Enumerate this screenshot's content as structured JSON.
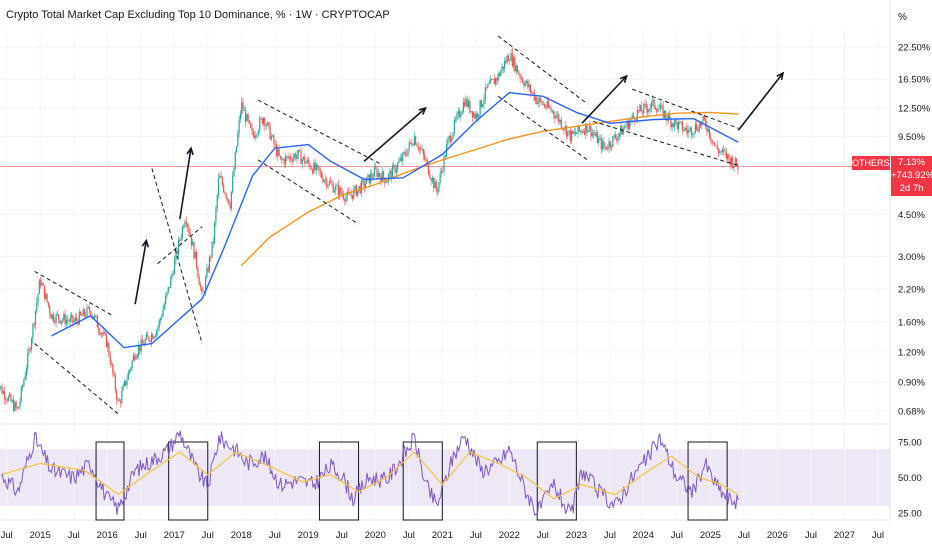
{
  "title": "Crypto Total Market Cap Excluding Top 10 Dominance, % · 1W · CRYPTOCAP",
  "axis_unit_label": "%",
  "price_axis_ticks": [
    "22.50%",
    "16.50%",
    "12.50%",
    "9.50%",
    "7.13%",
    "4.50%",
    "3.00%",
    "2.20%",
    "1.60%",
    "1.20%",
    "0.90%",
    "0.68%"
  ],
  "rsi_axis_ticks": [
    "75.00",
    "50.00",
    "25.00"
  ],
  "time_axis_labels": [
    "Jul",
    "2015",
    "Jul",
    "2016",
    "Jul",
    "2017",
    "Jul",
    "2018",
    "Jul",
    "2019",
    "Jul",
    "2020",
    "Jul",
    "2021",
    "Jul",
    "2022",
    "Jul",
    "2023",
    "Jul",
    "2024",
    "Jul",
    "2025",
    "Jul",
    "2026",
    "Jul",
    "2027",
    "Jul"
  ],
  "last_price_badge": {
    "symbol": "OTHERS.D",
    "price": "7.13%",
    "change": "+743.92%",
    "countdown": "2d 7h"
  },
  "colors": {
    "price_line": "#f23645",
    "ma_short": "#2962ff",
    "ma_long": "#f7931a",
    "rsi_line": "#7e57c2",
    "rsi_ma": "#f7c23b",
    "rsi_band": "#ede7f6",
    "candle_up": "#26a69a",
    "candle_down": "#ef5350"
  },
  "chart_data": {
    "type": "candlestick",
    "timeframe": "1W",
    "y_scale": "log",
    "ylim_percent": [
      0.6,
      27
    ],
    "x_range": [
      "2014-05",
      "2027-08"
    ],
    "close_series": [
      {
        "date": "2014-05",
        "value": 0.9
      },
      {
        "date": "2014-09",
        "value": 0.68
      },
      {
        "date": "2014-11",
        "value": 1.2
      },
      {
        "date": "2015-01",
        "value": 2.4
      },
      {
        "date": "2015-03",
        "value": 1.7
      },
      {
        "date": "2015-07",
        "value": 1.6
      },
      {
        "date": "2015-10",
        "value": 1.8
      },
      {
        "date": "2016-01",
        "value": 1.3
      },
      {
        "date": "2016-03",
        "value": 0.72
      },
      {
        "date": "2016-06",
        "value": 1.2
      },
      {
        "date": "2016-10",
        "value": 1.5
      },
      {
        "date": "2016-12",
        "value": 2.2
      },
      {
        "date": "2017-03",
        "value": 4.5
      },
      {
        "date": "2017-05",
        "value": 2.8
      },
      {
        "date": "2017-06",
        "value": 2.0
      },
      {
        "date": "2017-08",
        "value": 3.5
      },
      {
        "date": "2017-09",
        "value": 6.5
      },
      {
        "date": "2017-11",
        "value": 5.0
      },
      {
        "date": "2018-01",
        "value": 13.0
      },
      {
        "date": "2018-03",
        "value": 9.5
      },
      {
        "date": "2018-05",
        "value": 11.5
      },
      {
        "date": "2018-08",
        "value": 7.5
      },
      {
        "date": "2018-11",
        "value": 8.0
      },
      {
        "date": "2019-02",
        "value": 7.0
      },
      {
        "date": "2019-05",
        "value": 6.0
      },
      {
        "date": "2019-08",
        "value": 5.3
      },
      {
        "date": "2019-11",
        "value": 6.0
      },
      {
        "date": "2020-01",
        "value": 6.8
      },
      {
        "date": "2020-03",
        "value": 6.3
      },
      {
        "date": "2020-06",
        "value": 7.8
      },
      {
        "date": "2020-08",
        "value": 9.5
      },
      {
        "date": "2020-10",
        "value": 7.5
      },
      {
        "date": "2020-12",
        "value": 5.6
      },
      {
        "date": "2021-02",
        "value": 9.0
      },
      {
        "date": "2021-05",
        "value": 13.5
      },
      {
        "date": "2021-07",
        "value": 11.5
      },
      {
        "date": "2021-09",
        "value": 15.0
      },
      {
        "date": "2021-11",
        "value": 17.0
      },
      {
        "date": "2022-01",
        "value": 21.0
      },
      {
        "date": "2022-03",
        "value": 17.0
      },
      {
        "date": "2022-06",
        "value": 13.5
      },
      {
        "date": "2022-09",
        "value": 12.0
      },
      {
        "date": "2022-12",
        "value": 9.5
      },
      {
        "date": "2023-03",
        "value": 10.5
      },
      {
        "date": "2023-06",
        "value": 8.5
      },
      {
        "date": "2023-09",
        "value": 10.0
      },
      {
        "date": "2023-12",
        "value": 12.0
      },
      {
        "date": "2024-03",
        "value": 13.0
      },
      {
        "date": "2024-06",
        "value": 11.0
      },
      {
        "date": "2024-09",
        "value": 10.0
      },
      {
        "date": "2024-12",
        "value": 11.0
      },
      {
        "date": "2025-02",
        "value": 8.5
      },
      {
        "date": "2025-04",
        "value": 7.8
      },
      {
        "date": "2025-06",
        "value": 7.13
      }
    ],
    "ma_short": [
      {
        "date": "2015-03",
        "value": 1.4
      },
      {
        "date": "2015-10",
        "value": 1.7
      },
      {
        "date": "2016-04",
        "value": 1.25
      },
      {
        "date": "2016-09",
        "value": 1.3
      },
      {
        "date": "2017-06",
        "value": 2.0
      },
      {
        "date": "2017-10",
        "value": 3.3
      },
      {
        "date": "2018-03",
        "value": 6.5
      },
      {
        "date": "2018-07",
        "value": 8.5
      },
      {
        "date": "2019-01",
        "value": 8.8
      },
      {
        "date": "2019-05",
        "value": 7.5
      },
      {
        "date": "2019-11",
        "value": 6.3
      },
      {
        "date": "2020-06",
        "value": 6.4
      },
      {
        "date": "2021-01",
        "value": 8.0
      },
      {
        "date": "2021-07",
        "value": 11.0
      },
      {
        "date": "2022-01",
        "value": 14.5
      },
      {
        "date": "2022-07",
        "value": 14.0
      },
      {
        "date": "2023-01",
        "value": 12.0
      },
      {
        "date": "2023-07",
        "value": 10.8
      },
      {
        "date": "2024-03",
        "value": 11.2
      },
      {
        "date": "2024-10",
        "value": 11.3
      },
      {
        "date": "2025-06",
        "value": 9.0
      }
    ],
    "ma_long": [
      {
        "date": "2018-01",
        "value": 2.75
      },
      {
        "date": "2018-06",
        "value": 3.6
      },
      {
        "date": "2019-01",
        "value": 4.6
      },
      {
        "date": "2019-07",
        "value": 5.4
      },
      {
        "date": "2020-01",
        "value": 6.0
      },
      {
        "date": "2020-07",
        "value": 6.8
      },
      {
        "date": "2021-01",
        "value": 7.6
      },
      {
        "date": "2021-07",
        "value": 8.4
      },
      {
        "date": "2022-01",
        "value": 9.3
      },
      {
        "date": "2022-07",
        "value": 10.0
      },
      {
        "date": "2023-01",
        "value": 10.5
      },
      {
        "date": "2023-07",
        "value": 11.0
      },
      {
        "date": "2024-01",
        "value": 11.5
      },
      {
        "date": "2024-07",
        "value": 11.9
      },
      {
        "date": "2025-01",
        "value": 12.0
      },
      {
        "date": "2025-06",
        "value": 11.8
      }
    ],
    "rsi": {
      "ylim": [
        20,
        85
      ],
      "band": [
        30,
        70
      ],
      "values": [
        {
          "date": "2014-06",
          "value": 52
        },
        {
          "date": "2014-09",
          "value": 40
        },
        {
          "date": "2014-12",
          "value": 78
        },
        {
          "date": "2015-03",
          "value": 55
        },
        {
          "date": "2015-07",
          "value": 50
        },
        {
          "date": "2015-10",
          "value": 60
        },
        {
          "date": "2016-01",
          "value": 35
        },
        {
          "date": "2016-03",
          "value": 28
        },
        {
          "date": "2016-06",
          "value": 55
        },
        {
          "date": "2016-09",
          "value": 62
        },
        {
          "date": "2016-12",
          "value": 70
        },
        {
          "date": "2017-02",
          "value": 82
        },
        {
          "date": "2017-05",
          "value": 55
        },
        {
          "date": "2017-07",
          "value": 43
        },
        {
          "date": "2017-09",
          "value": 78
        },
        {
          "date": "2017-12",
          "value": 70
        },
        {
          "date": "2018-02",
          "value": 60
        },
        {
          "date": "2018-05",
          "value": 65
        },
        {
          "date": "2018-08",
          "value": 45
        },
        {
          "date": "2018-11",
          "value": 48
        },
        {
          "date": "2019-02",
          "value": 45
        },
        {
          "date": "2019-05",
          "value": 58
        },
        {
          "date": "2019-07",
          "value": 52
        },
        {
          "date": "2019-09",
          "value": 35
        },
        {
          "date": "2019-12",
          "value": 50
        },
        {
          "date": "2020-03",
          "value": 48
        },
        {
          "date": "2020-06",
          "value": 65
        },
        {
          "date": "2020-08",
          "value": 78
        },
        {
          "date": "2020-10",
          "value": 45
        },
        {
          "date": "2020-12",
          "value": 30
        },
        {
          "date": "2021-03",
          "value": 65
        },
        {
          "date": "2021-05",
          "value": 80
        },
        {
          "date": "2021-08",
          "value": 55
        },
        {
          "date": "2021-11",
          "value": 60
        },
        {
          "date": "2022-01",
          "value": 70
        },
        {
          "date": "2022-04",
          "value": 40
        },
        {
          "date": "2022-06",
          "value": 25
        },
        {
          "date": "2022-09",
          "value": 45
        },
        {
          "date": "2022-12",
          "value": 22
        },
        {
          "date": "2023-02",
          "value": 55
        },
        {
          "date": "2023-05",
          "value": 40
        },
        {
          "date": "2023-08",
          "value": 30
        },
        {
          "date": "2023-11",
          "value": 50
        },
        {
          "date": "2024-02",
          "value": 65
        },
        {
          "date": "2024-04",
          "value": 78
        },
        {
          "date": "2024-07",
          "value": 50
        },
        {
          "date": "2024-10",
          "value": 40
        },
        {
          "date": "2024-12",
          "value": 60
        },
        {
          "date": "2025-02",
          "value": 45
        },
        {
          "date": "2025-04",
          "value": 35
        },
        {
          "date": "2025-06",
          "value": 33
        }
      ],
      "ma": [
        {
          "date": "2014-06",
          "value": 52
        },
        {
          "date": "2015-01",
          "value": 60
        },
        {
          "date": "2015-09",
          "value": 55
        },
        {
          "date": "2016-03",
          "value": 38
        },
        {
          "date": "2016-09",
          "value": 55
        },
        {
          "date": "2017-02",
          "value": 68
        },
        {
          "date": "2017-07",
          "value": 52
        },
        {
          "date": "2017-12",
          "value": 68
        },
        {
          "date": "2018-06",
          "value": 58
        },
        {
          "date": "2018-12",
          "value": 47
        },
        {
          "date": "2019-05",
          "value": 52
        },
        {
          "date": "2019-10",
          "value": 40
        },
        {
          "date": "2020-03",
          "value": 50
        },
        {
          "date": "2020-08",
          "value": 68
        },
        {
          "date": "2021-01",
          "value": 45
        },
        {
          "date": "2021-06",
          "value": 68
        },
        {
          "date": "2021-11",
          "value": 60
        },
        {
          "date": "2022-04",
          "value": 50
        },
        {
          "date": "2022-09",
          "value": 35
        },
        {
          "date": "2023-02",
          "value": 45
        },
        {
          "date": "2023-08",
          "value": 38
        },
        {
          "date": "2024-02",
          "value": 55
        },
        {
          "date": "2024-06",
          "value": 65
        },
        {
          "date": "2024-11",
          "value": 50
        },
        {
          "date": "2025-03",
          "value": 45
        },
        {
          "date": "2025-06",
          "value": 38
        }
      ]
    },
    "drawings": {
      "descending_channels": [
        {
          "upper": [
            [
              "2014-12",
              2.6
            ],
            [
              "2016-02",
              1.7
            ]
          ],
          "lower": [
            [
              "2014-12",
              1.3
            ],
            [
              "2016-03",
              0.66
            ]
          ]
        },
        {
          "upper": [
            [
              "2016-10",
              2.8
            ],
            [
              "2017-06",
              4.0
            ]
          ],
          "lower": [
            [
              "2016-09",
              7.0
            ],
            [
              "2017-06",
              1.3
            ]
          ]
        },
        {
          "upper": [
            [
              "2018-04",
              13.5
            ],
            [
              "2020-02",
              7.3
            ]
          ],
          "lower": [
            [
              "2018-04",
              7.6
            ],
            [
              "2019-10",
              4.1
            ]
          ]
        },
        {
          "upper": [
            [
              "2021-11",
              25.0
            ],
            [
              "2023-03",
              13.0
            ]
          ],
          "lower": [
            [
              "2021-11",
              14.0
            ],
            [
              "2023-03",
              7.6
            ]
          ]
        },
        {
          "upper": [
            [
              "2023-11",
              15.0
            ],
            [
              "2025-06",
              10.3
            ]
          ],
          "lower": [
            [
              "2023-04",
              11.0
            ],
            [
              "2025-06",
              7.2
            ]
          ]
        }
      ],
      "arrows": [
        {
          "from": [
            "2016-06",
            1.9
          ],
          "to": [
            "2016-08",
            3.5
          ]
        },
        {
          "from": [
            "2017-02",
            4.3
          ],
          "to": [
            "2017-04",
            8.5
          ]
        },
        {
          "from": [
            "2019-11",
            7.5
          ],
          "to": [
            "2020-10",
            12.5
          ]
        },
        {
          "from": [
            "2023-02",
            10.8
          ],
          "to": [
            "2023-10",
            17.0
          ]
        },
        {
          "from": [
            "2025-06",
            10.1
          ],
          "to": [
            "2026-02",
            17.5
          ]
        }
      ],
      "rsi_boxes": [
        [
          "2015-11",
          "2016-04"
        ],
        [
          "2016-12",
          "2017-07"
        ],
        [
          "2019-03",
          "2019-10"
        ],
        [
          "2020-06",
          "2021-01"
        ],
        [
          "2022-06",
          "2023-01"
        ],
        [
          "2024-09",
          "2025-04"
        ]
      ]
    }
  }
}
